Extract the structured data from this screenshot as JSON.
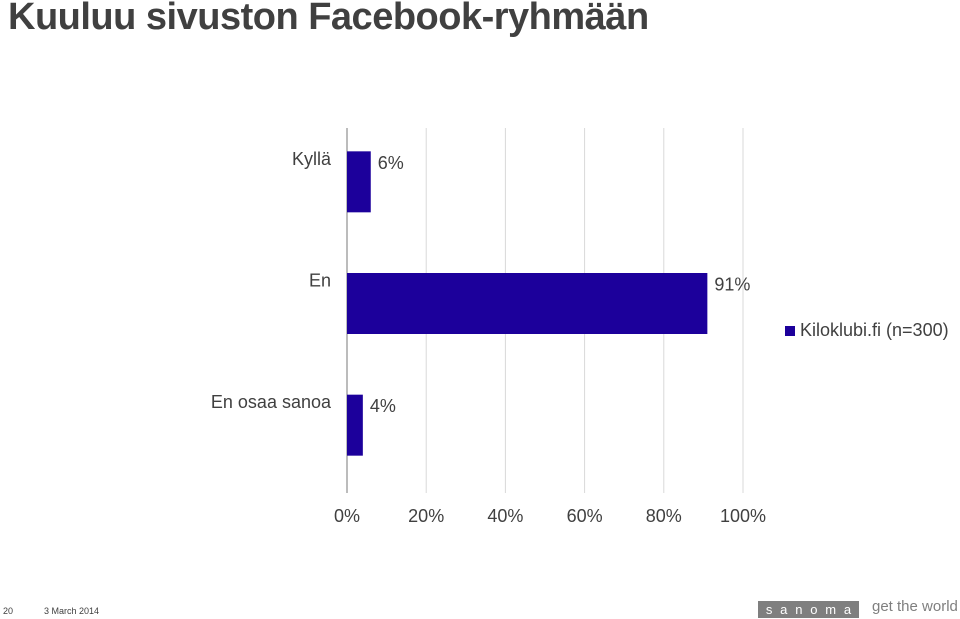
{
  "title": "Kuuluu sivuston Facebook-ryhmään",
  "chart_data": {
    "type": "bar",
    "orientation": "horizontal",
    "categories": [
      "Kyllä",
      "En",
      "En osaa sanoa"
    ],
    "series": [
      {
        "name": "Kiloklubi.fi (n=300)",
        "values": [
          6,
          91,
          4
        ],
        "labels": [
          "6%",
          "91%",
          "4%"
        ],
        "color": "#1c009b"
      }
    ],
    "xlim": [
      0,
      100
    ],
    "x_ticks": [
      "0%",
      "20%",
      "40%",
      "60%",
      "80%",
      "100%"
    ],
    "grid": true,
    "legend_position": "right"
  },
  "legend": {
    "label": "Kiloklubi.fi (n=300)"
  },
  "footer": {
    "page_number": "20",
    "date": "3 March 2014",
    "logo_letters": [
      "s",
      "a",
      "n",
      "o",
      "m",
      "a"
    ],
    "tagline": "get the world"
  }
}
